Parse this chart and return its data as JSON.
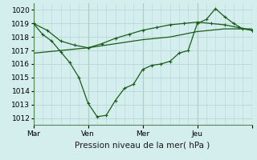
{
  "background_color": "#d4eded",
  "grid_color": "#b8d4d4",
  "line_color": "#1a5c1a",
  "xlabel": "Pression niveau de la mer( hPa )",
  "xlim": [
    0,
    48
  ],
  "ylim": [
    1011.5,
    1020.5
  ],
  "yticks": [
    1012,
    1013,
    1014,
    1015,
    1016,
    1017,
    1018,
    1019,
    1020
  ],
  "xtick_positions": [
    0,
    12,
    24,
    36,
    48
  ],
  "xtick_labels": [
    "Mar",
    "Ven",
    "Mer",
    "Jeu",
    ""
  ],
  "series1_x": [
    0,
    2,
    4,
    6,
    8,
    10,
    12,
    14,
    16,
    18,
    20,
    22,
    24,
    26,
    28,
    30,
    32,
    34,
    36,
    38,
    40,
    42,
    44,
    46,
    48
  ],
  "series1_y": [
    1019.0,
    1018.2,
    1017.7,
    1016.9,
    1016.1,
    1015.0,
    1013.1,
    1012.1,
    1012.2,
    1013.3,
    1014.2,
    1014.5,
    1015.6,
    1015.9,
    1016.0,
    1016.2,
    1016.8,
    1017.0,
    1019.0,
    1019.3,
    1020.1,
    1019.5,
    1019.0,
    1018.6,
    1018.5
  ],
  "series2_x": [
    0,
    3,
    6,
    9,
    12,
    15,
    18,
    21,
    24,
    27,
    30,
    33,
    36,
    39,
    42,
    45,
    48
  ],
  "series2_y": [
    1019.0,
    1018.5,
    1017.7,
    1017.4,
    1017.2,
    1017.5,
    1017.9,
    1018.2,
    1018.5,
    1018.7,
    1018.9,
    1019.0,
    1019.1,
    1019.0,
    1018.9,
    1018.7,
    1018.5
  ],
  "series3_x": [
    0,
    6,
    12,
    18,
    24,
    30,
    36,
    42,
    48
  ],
  "series3_y": [
    1016.8,
    1017.0,
    1017.2,
    1017.5,
    1017.8,
    1018.0,
    1018.4,
    1018.6,
    1018.6
  ]
}
